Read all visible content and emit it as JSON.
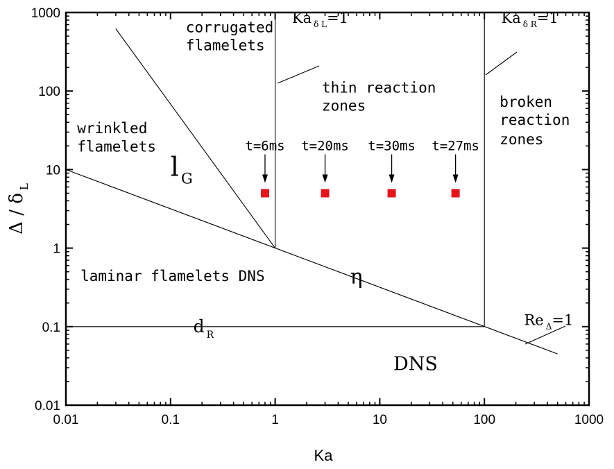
{
  "chart_data": {
    "type": "scatter",
    "x_scale": "log",
    "y_scale": "log",
    "xlim": [
      0.01,
      1000
    ],
    "ylim": [
      0.01,
      1000
    ],
    "xlabel": "Ka",
    "ylabel_main": "Δ / δ",
    "ylabel_sub": "L",
    "x_ticks": [
      0.01,
      0.1,
      1,
      10,
      100,
      1000
    ],
    "y_ticks": [
      0.01,
      0.1,
      1,
      10,
      100,
      1000
    ],
    "x_tick_labels": [
      "0.01",
      "0.1",
      "1",
      "10",
      "100",
      "1000"
    ],
    "y_tick_labels": [
      "0.01",
      "0.1",
      "1",
      "10",
      "100",
      "1000"
    ],
    "grid": false,
    "marker_color": "#e8141b",
    "points": [
      {
        "x": 0.8,
        "y": 5,
        "label": "t=6ms"
      },
      {
        "x": 3,
        "y": 5,
        "label": "t=20ms"
      },
      {
        "x": 13,
        "y": 5,
        "label": "t=30ms"
      },
      {
        "x": 53,
        "y": 5,
        "label": "t=27ms"
      }
    ],
    "lines": [
      {
        "name": "η",
        "points": [
          [
            0.01,
            10
          ],
          [
            500,
            0.045
          ]
        ]
      },
      {
        "name": "d_R",
        "points": [
          [
            0.01,
            0.1
          ],
          [
            100,
            0.1
          ]
        ]
      },
      {
        "name": "l_G",
        "points": [
          [
            0.03,
            620
          ],
          [
            1,
            1
          ]
        ]
      },
      {
        "name": "Ka_δL=1",
        "points": [
          [
            1,
            1
          ],
          [
            1,
            1000
          ]
        ]
      },
      {
        "name": "Ka_δR=1",
        "points": [
          [
            100,
            0.1
          ],
          [
            100,
            1000
          ]
        ]
      }
    ],
    "region_labels": [
      {
        "text": "corrugated",
        "x": 0.14,
        "y": 560,
        "style": "mono",
        "size": 21
      },
      {
        "text": "flamelets",
        "x": 0.14,
        "y": 330,
        "style": "mono",
        "size": 21
      },
      {
        "text": "thin reaction",
        "x": 2.8,
        "y": 95,
        "style": "mono",
        "size": 21
      },
      {
        "text": "zones",
        "x": 2.8,
        "y": 56,
        "style": "mono",
        "size": 21
      },
      {
        "text": "broken",
        "x": 140,
        "y": 63,
        "style": "mono",
        "size": 21
      },
      {
        "text": "reaction",
        "x": 140,
        "y": 37,
        "style": "mono",
        "size": 21
      },
      {
        "text": "zones",
        "x": 140,
        "y": 21,
        "style": "mono",
        "size": 21
      },
      {
        "text": "wrinkled",
        "x": 0.0128,
        "y": 29,
        "style": "mono",
        "size": 21
      },
      {
        "text": "flamelets",
        "x": 0.0128,
        "y": 17,
        "style": "mono",
        "size": 21
      },
      {
        "text": "laminar flamelets DNS",
        "x": 0.0138,
        "y": 0.38,
        "style": "mono",
        "size": 21
      },
      {
        "text": "DNS",
        "x": 13.5,
        "y": 0.028,
        "style": "serif",
        "size": 27
      }
    ],
    "line_labels": [
      {
        "main": "l",
        "sub": "G",
        "x": 0.1,
        "y": 8.3,
        "size": 38
      },
      {
        "main": "d",
        "sub": "R",
        "x": 0.165,
        "y": 0.085,
        "size": 25
      },
      {
        "main": "η",
        "sub": "",
        "x": 5.2,
        "y": 0.35,
        "size": 30
      },
      {
        "main": "Ka",
        "sub": "δ L",
        "post": "=1",
        "x": 1.45,
        "y": 740,
        "size": 21
      },
      {
        "main": "Ka",
        "sub": "δ R",
        "post": "=1",
        "x": 145,
        "y": 740,
        "size": 21
      },
      {
        "main": "Re",
        "sub": "Δ",
        "post": "=1",
        "x": 240,
        "y": 0.105,
        "size": 21
      }
    ]
  }
}
